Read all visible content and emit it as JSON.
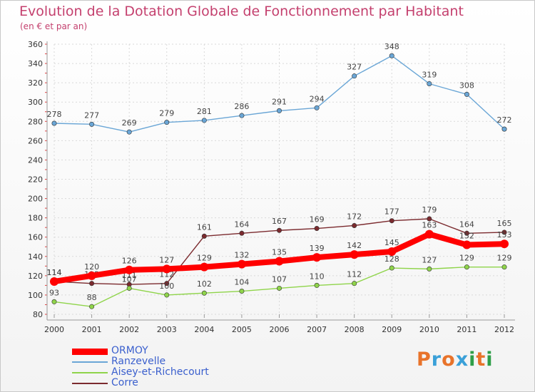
{
  "title": "Evolution de la Dotation Globale de Fonctionnement par Habitant",
  "subtitle": "(en € et par an)",
  "logo": {
    "text": "Proxiti",
    "colors": [
      "#e8732a",
      "#3aa0d8",
      "#e8732a",
      "#3aa0d8",
      "#2e9e48",
      "#e8732a",
      "#2e9e48"
    ]
  },
  "chart_data": {
    "type": "line",
    "x": [
      "2000",
      "2001",
      "2002",
      "2003",
      "2004",
      "2005",
      "2006",
      "2007",
      "2008",
      "2009",
      "2010",
      "2011",
      "2012"
    ],
    "yticks": [
      "80",
      "100",
      "120",
      "140",
      "160",
      "180",
      "200",
      "220",
      "240",
      "260",
      "280",
      "300",
      "320",
      "340",
      "360"
    ],
    "ylim": [
      80,
      360
    ],
    "grid": true,
    "legend_position": "bottom-left",
    "series": [
      {
        "name": "Ranzevelle",
        "color": "#6aa6d6",
        "values": [
          278,
          277,
          269,
          279,
          281,
          286,
          291,
          294,
          327,
          348,
          319,
          308,
          272
        ],
        "labels": [
          "278",
          "277",
          "269",
          "279",
          "281",
          "286",
          "291",
          "294",
          "327",
          "348",
          "319",
          "308",
          "272"
        ]
      },
      {
        "name": "Corre",
        "color": "#7b2a2e",
        "values": [
          114,
          112,
          111,
          112,
          161,
          164,
          167,
          169,
          172,
          177,
          179,
          164,
          165
        ],
        "labels": [
          "114",
          "112",
          "111",
          "112",
          "161",
          "164",
          "167",
          "169",
          "172",
          "177",
          "179",
          "164",
          "165"
        ]
      },
      {
        "name": "Aisey-et-Richecourt",
        "color": "#8fd44a",
        "values": [
          93,
          88,
          107,
          100,
          102,
          104,
          107,
          110,
          112,
          128,
          127,
          129,
          129
        ],
        "labels": [
          "93",
          "88",
          "107",
          "100",
          "102",
          "104",
          "107",
          "110",
          "112",
          "128",
          "127",
          "129",
          "129"
        ]
      },
      {
        "name": "ORMOY",
        "color": "#ff0000",
        "values": [
          114,
          120,
          126,
          127,
          129,
          132,
          135,
          139,
          142,
          145,
          163,
          152,
          153
        ],
        "labels": [
          "114",
          "120",
          "126",
          "127",
          "129",
          "132",
          "135",
          "139",
          "142",
          "145",
          "163",
          "152",
          "153"
        ]
      }
    ],
    "legend": [
      "ORMOY",
      "Ranzevelle",
      "Aisey-et-Richecourt",
      "Corre"
    ]
  }
}
